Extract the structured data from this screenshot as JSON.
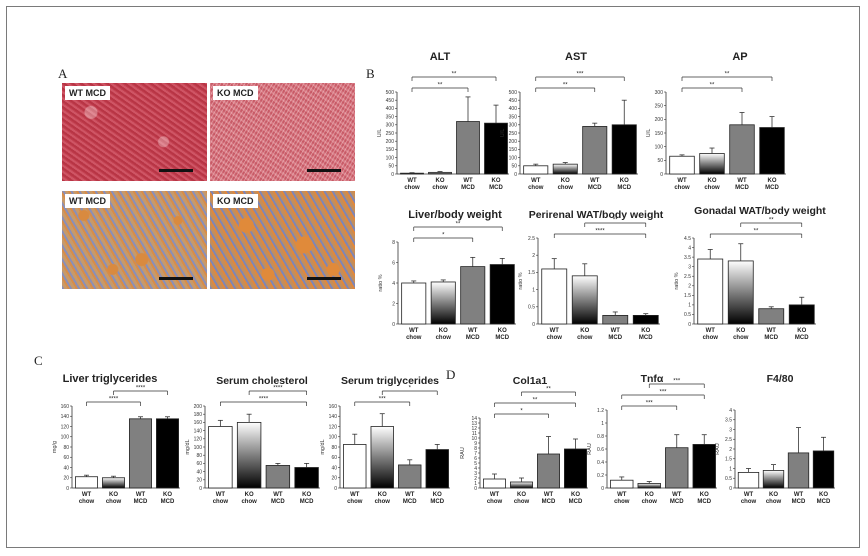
{
  "panels": {
    "A": "A",
    "B": "B",
    "C": "C",
    "D": "D"
  },
  "histology": [
    {
      "label": "WT MCD"
    },
    {
      "label": "KO MCD"
    },
    {
      "label": "WT MCD"
    },
    {
      "label": "KO MCD"
    }
  ],
  "colors": {
    "wt_chow": "#ffffff",
    "ko_chow": "gradient-white-to-black",
    "wt_mcd": "#808080",
    "ko_mcd": "#000000"
  },
  "chart_data": [
    {
      "id": "alt",
      "type": "bar",
      "title": "ALT",
      "ylabel": "U/L",
      "ylim": [
        0,
        500
      ],
      "yticks": [
        "0",
        "50",
        "100",
        "150",
        "200",
        "250",
        "300",
        "350",
        "400",
        "450",
        "500"
      ],
      "categories": [
        "WT chow",
        "KO chow",
        "WT MCD",
        "KO MCD"
      ],
      "values": [
        5,
        10,
        320,
        310
      ],
      "errors": [
        3,
        5,
        150,
        110
      ],
      "sig": [
        {
          "from": 0,
          "to": 2,
          "label": "**"
        },
        {
          "from": 0,
          "to": 3,
          "label": "**"
        }
      ]
    },
    {
      "id": "ast",
      "type": "bar",
      "title": "AST",
      "ylabel": "U/L",
      "ylim": [
        0,
        500
      ],
      "yticks": [
        "0",
        "50",
        "100",
        "150",
        "200",
        "250",
        "300",
        "350",
        "400",
        "450",
        "500"
      ],
      "categories": [
        "WT chow",
        "KO chow",
        "WT MCD",
        "KO MCD"
      ],
      "values": [
        50,
        60,
        290,
        300
      ],
      "errors": [
        10,
        10,
        20,
        150
      ],
      "sig": [
        {
          "from": 0,
          "to": 2,
          "label": "**"
        },
        {
          "from": 0,
          "to": 3,
          "label": "***"
        }
      ]
    },
    {
      "id": "ap",
      "type": "bar",
      "title": "AP",
      "ylabel": "U/L",
      "ylim": [
        0,
        300
      ],
      "yticks": [
        "0",
        "50",
        "100",
        "150",
        "200",
        "250",
        "300"
      ],
      "categories": [
        "WT chow",
        "KO chow",
        "WT MCD",
        "KO MCD"
      ],
      "values": [
        65,
        75,
        180,
        170
      ],
      "errors": [
        5,
        20,
        45,
        40
      ],
      "sig": [
        {
          "from": 0,
          "to": 2,
          "label": "**"
        },
        {
          "from": 0,
          "to": 3,
          "label": "**"
        }
      ]
    },
    {
      "id": "liver_body",
      "type": "bar",
      "title": "Liver/body weight",
      "ylabel": "ratio %",
      "ylim": [
        0,
        8
      ],
      "yticks": [
        "0",
        "2",
        "4",
        "6",
        "8"
      ],
      "categories": [
        "WT chow",
        "KO chow",
        "WT MCD",
        "KO MCD"
      ],
      "values": [
        4.0,
        4.1,
        5.6,
        5.8
      ],
      "errors": [
        0.2,
        0.2,
        0.9,
        0.6
      ],
      "sig": [
        {
          "from": 0,
          "to": 2,
          "label": "*"
        },
        {
          "from": 0,
          "to": 3,
          "label": "**"
        }
      ]
    },
    {
      "id": "perirenal",
      "type": "bar",
      "title": "Perirenal WAT/body weight",
      "ylabel": "ratio %",
      "ylim": [
        0,
        2.5
      ],
      "yticks": [
        "0",
        "0.5",
        "1",
        "1.5",
        "2",
        "2.5"
      ],
      "categories": [
        "WT chow",
        "KO chow",
        "WT MCD",
        "KO MCD"
      ],
      "values": [
        1.6,
        1.4,
        0.25,
        0.25
      ],
      "errors": [
        0.3,
        0.35,
        0.1,
        0.05
      ],
      "sig": [
        {
          "from": 0,
          "to": 3,
          "label": "****"
        },
        {
          "from": 1,
          "to": 3,
          "label": "**"
        }
      ]
    },
    {
      "id": "gonadal",
      "type": "bar",
      "title": "Gonadal WAT/body weight",
      "ylabel": "ratio %",
      "ylim": [
        0,
        4.5
      ],
      "yticks": [
        "0",
        "0.5",
        "1",
        "1.5",
        "2",
        "2.5",
        "3",
        "3.5",
        "4",
        "4.5"
      ],
      "categories": [
        "WT chow",
        "KO chow",
        "WT MCD",
        "KO MCD"
      ],
      "values": [
        3.4,
        3.3,
        0.8,
        1.0
      ],
      "errors": [
        0.5,
        0.9,
        0.1,
        0.4
      ],
      "sig": [
        {
          "from": 0,
          "to": 3,
          "label": "**"
        },
        {
          "from": 1,
          "to": 3,
          "label": "**"
        }
      ]
    },
    {
      "id": "liver_tg",
      "type": "bar",
      "title": "Liver triglycerides",
      "ylabel": "mg/g",
      "ylim": [
        0,
        160
      ],
      "yticks": [
        "0",
        "20",
        "40",
        "60",
        "80",
        "100",
        "120",
        "140",
        "160"
      ],
      "categories": [
        "WT chow",
        "KO chow",
        "WT MCD",
        "KO MCD"
      ],
      "values": [
        22,
        20,
        135,
        135
      ],
      "errors": [
        3,
        3,
        4,
        4
      ],
      "sig": [
        {
          "from": 0,
          "to": 2,
          "label": "****"
        },
        {
          "from": 1,
          "to": 3,
          "label": "****"
        }
      ]
    },
    {
      "id": "serum_chol",
      "type": "bar",
      "title": "Serum cholesterol",
      "ylabel": "mg/dL",
      "ylim": [
        0,
        200
      ],
      "yticks": [
        "0",
        "20",
        "40",
        "60",
        "80",
        "100",
        "120",
        "140",
        "160",
        "180",
        "200"
      ],
      "categories": [
        "WT chow",
        "KO chow",
        "WT MCD",
        "KO MCD"
      ],
      "values": [
        150,
        160,
        55,
        50
      ],
      "errors": [
        15,
        20,
        5,
        10
      ],
      "sig": [
        {
          "from": 0,
          "to": 3,
          "label": "****"
        },
        {
          "from": 1,
          "to": 3,
          "label": "****"
        }
      ]
    },
    {
      "id": "serum_tg",
      "type": "bar",
      "title": "Serum triglycerides",
      "ylabel": "mg/dL",
      "ylim": [
        0,
        160
      ],
      "yticks": [
        "0",
        "20",
        "40",
        "60",
        "80",
        "100",
        "120",
        "140",
        "160"
      ],
      "categories": [
        "WT chow",
        "KO chow",
        "WT MCD",
        "KO MCD"
      ],
      "values": [
        85,
        120,
        45,
        75
      ],
      "errors": [
        20,
        25,
        10,
        10
      ],
      "sig": [
        {
          "from": 0,
          "to": 2,
          "label": "***"
        },
        {
          "from": 1,
          "to": 3,
          "label": "*"
        }
      ]
    },
    {
      "id": "col1a1",
      "type": "bar",
      "title": "Col1a1",
      "ylabel": "RAU",
      "ylim": [
        0,
        14
      ],
      "yticks": [
        "0",
        "1",
        "2",
        "3",
        "4",
        "5",
        "6",
        "7",
        "8",
        "9",
        "10",
        "11",
        "12",
        "13",
        "14"
      ],
      "categories": [
        "WT chow",
        "KO chow",
        "WT MCD",
        "KO MCD"
      ],
      "values": [
        1.8,
        1.2,
        6.8,
        7.8
      ],
      "errors": [
        1.0,
        0.8,
        3.5,
        2.0
      ],
      "sig": [
        {
          "from": 0,
          "to": 2,
          "label": "*"
        },
        {
          "from": 0,
          "to": 3,
          "label": "**"
        },
        {
          "from": 1,
          "to": 3,
          "label": "**"
        }
      ]
    },
    {
      "id": "tnfa",
      "type": "bar",
      "title": "Tnfα",
      "ylabel": "RAU",
      "ylim": [
        0,
        1.2
      ],
      "yticks": [
        "0",
        "0.2",
        "0.4",
        "0.6",
        "0.8",
        "1",
        "1.2"
      ],
      "categories": [
        "WT chow",
        "KO chow",
        "WT MCD",
        "KO MCD"
      ],
      "values": [
        0.12,
        0.07,
        0.62,
        0.67
      ],
      "errors": [
        0.05,
        0.03,
        0.2,
        0.15
      ],
      "sig": [
        {
          "from": 0,
          "to": 2,
          "label": "***"
        },
        {
          "from": 0,
          "to": 3,
          "label": "***"
        },
        {
          "from": 1,
          "to": 3,
          "label": "***"
        }
      ]
    },
    {
      "id": "f480",
      "type": "bar",
      "title": "F4/80",
      "ylabel": "RAU",
      "ylim": [
        0,
        4
      ],
      "yticks": [
        "0",
        "0.5",
        "1",
        "1.5",
        "2",
        "2.5",
        "3",
        "3.5",
        "4"
      ],
      "categories": [
        "WT chow",
        "KO chow",
        "WT MCD",
        "KO MCD"
      ],
      "values": [
        0.8,
        0.9,
        1.8,
        1.9
      ],
      "errors": [
        0.2,
        0.3,
        1.3,
        0.7
      ],
      "sig": []
    }
  ]
}
